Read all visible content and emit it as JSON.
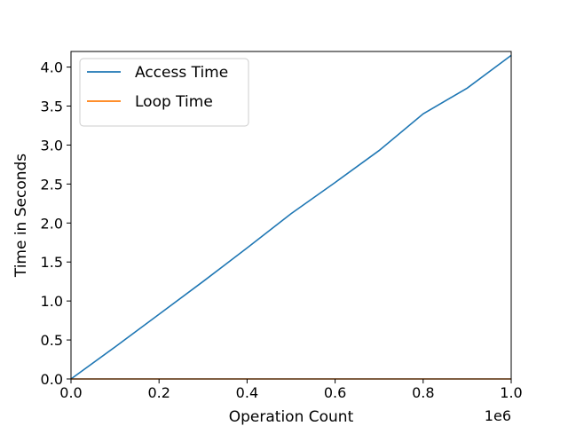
{
  "chart_data": {
    "type": "line",
    "xlabel": "Operation Count",
    "ylabel": "Time in Seconds",
    "x_offset_text": "1e6",
    "xlim": [
      0,
      1000000
    ],
    "ylim": [
      0,
      4.2
    ],
    "grid": false,
    "legend_position": "top-left",
    "x_ticks": [
      0,
      200000,
      400000,
      600000,
      800000,
      1000000
    ],
    "x_tick_labels": [
      "0.0",
      "0.2",
      "0.4",
      "0.6",
      "0.8",
      "1.0"
    ],
    "y_ticks": [
      0,
      0.5,
      1.0,
      1.5,
      2.0,
      2.5,
      3.0,
      3.5,
      4.0
    ],
    "y_tick_labels": [
      "0.0",
      "0.5",
      "1.0",
      "1.5",
      "2.0",
      "2.5",
      "3.0",
      "3.5",
      "4.0"
    ],
    "x": [
      0,
      100000,
      200000,
      300000,
      400000,
      500000,
      600000,
      700000,
      800000,
      900000,
      1000000
    ],
    "series": [
      {
        "name": "Access Time",
        "color": "#1f77b4",
        "values": [
          0.0,
          0.41,
          0.83,
          1.25,
          1.68,
          2.12,
          2.52,
          2.93,
          3.4,
          3.73,
          4.15
        ]
      },
      {
        "name": "Loop Time",
        "color": "#ff7f0e",
        "values": [
          0.0,
          0.0,
          0.0,
          0.0,
          0.0,
          0.0,
          0.0,
          0.0,
          0.0,
          0.0,
          0.0
        ]
      }
    ]
  }
}
